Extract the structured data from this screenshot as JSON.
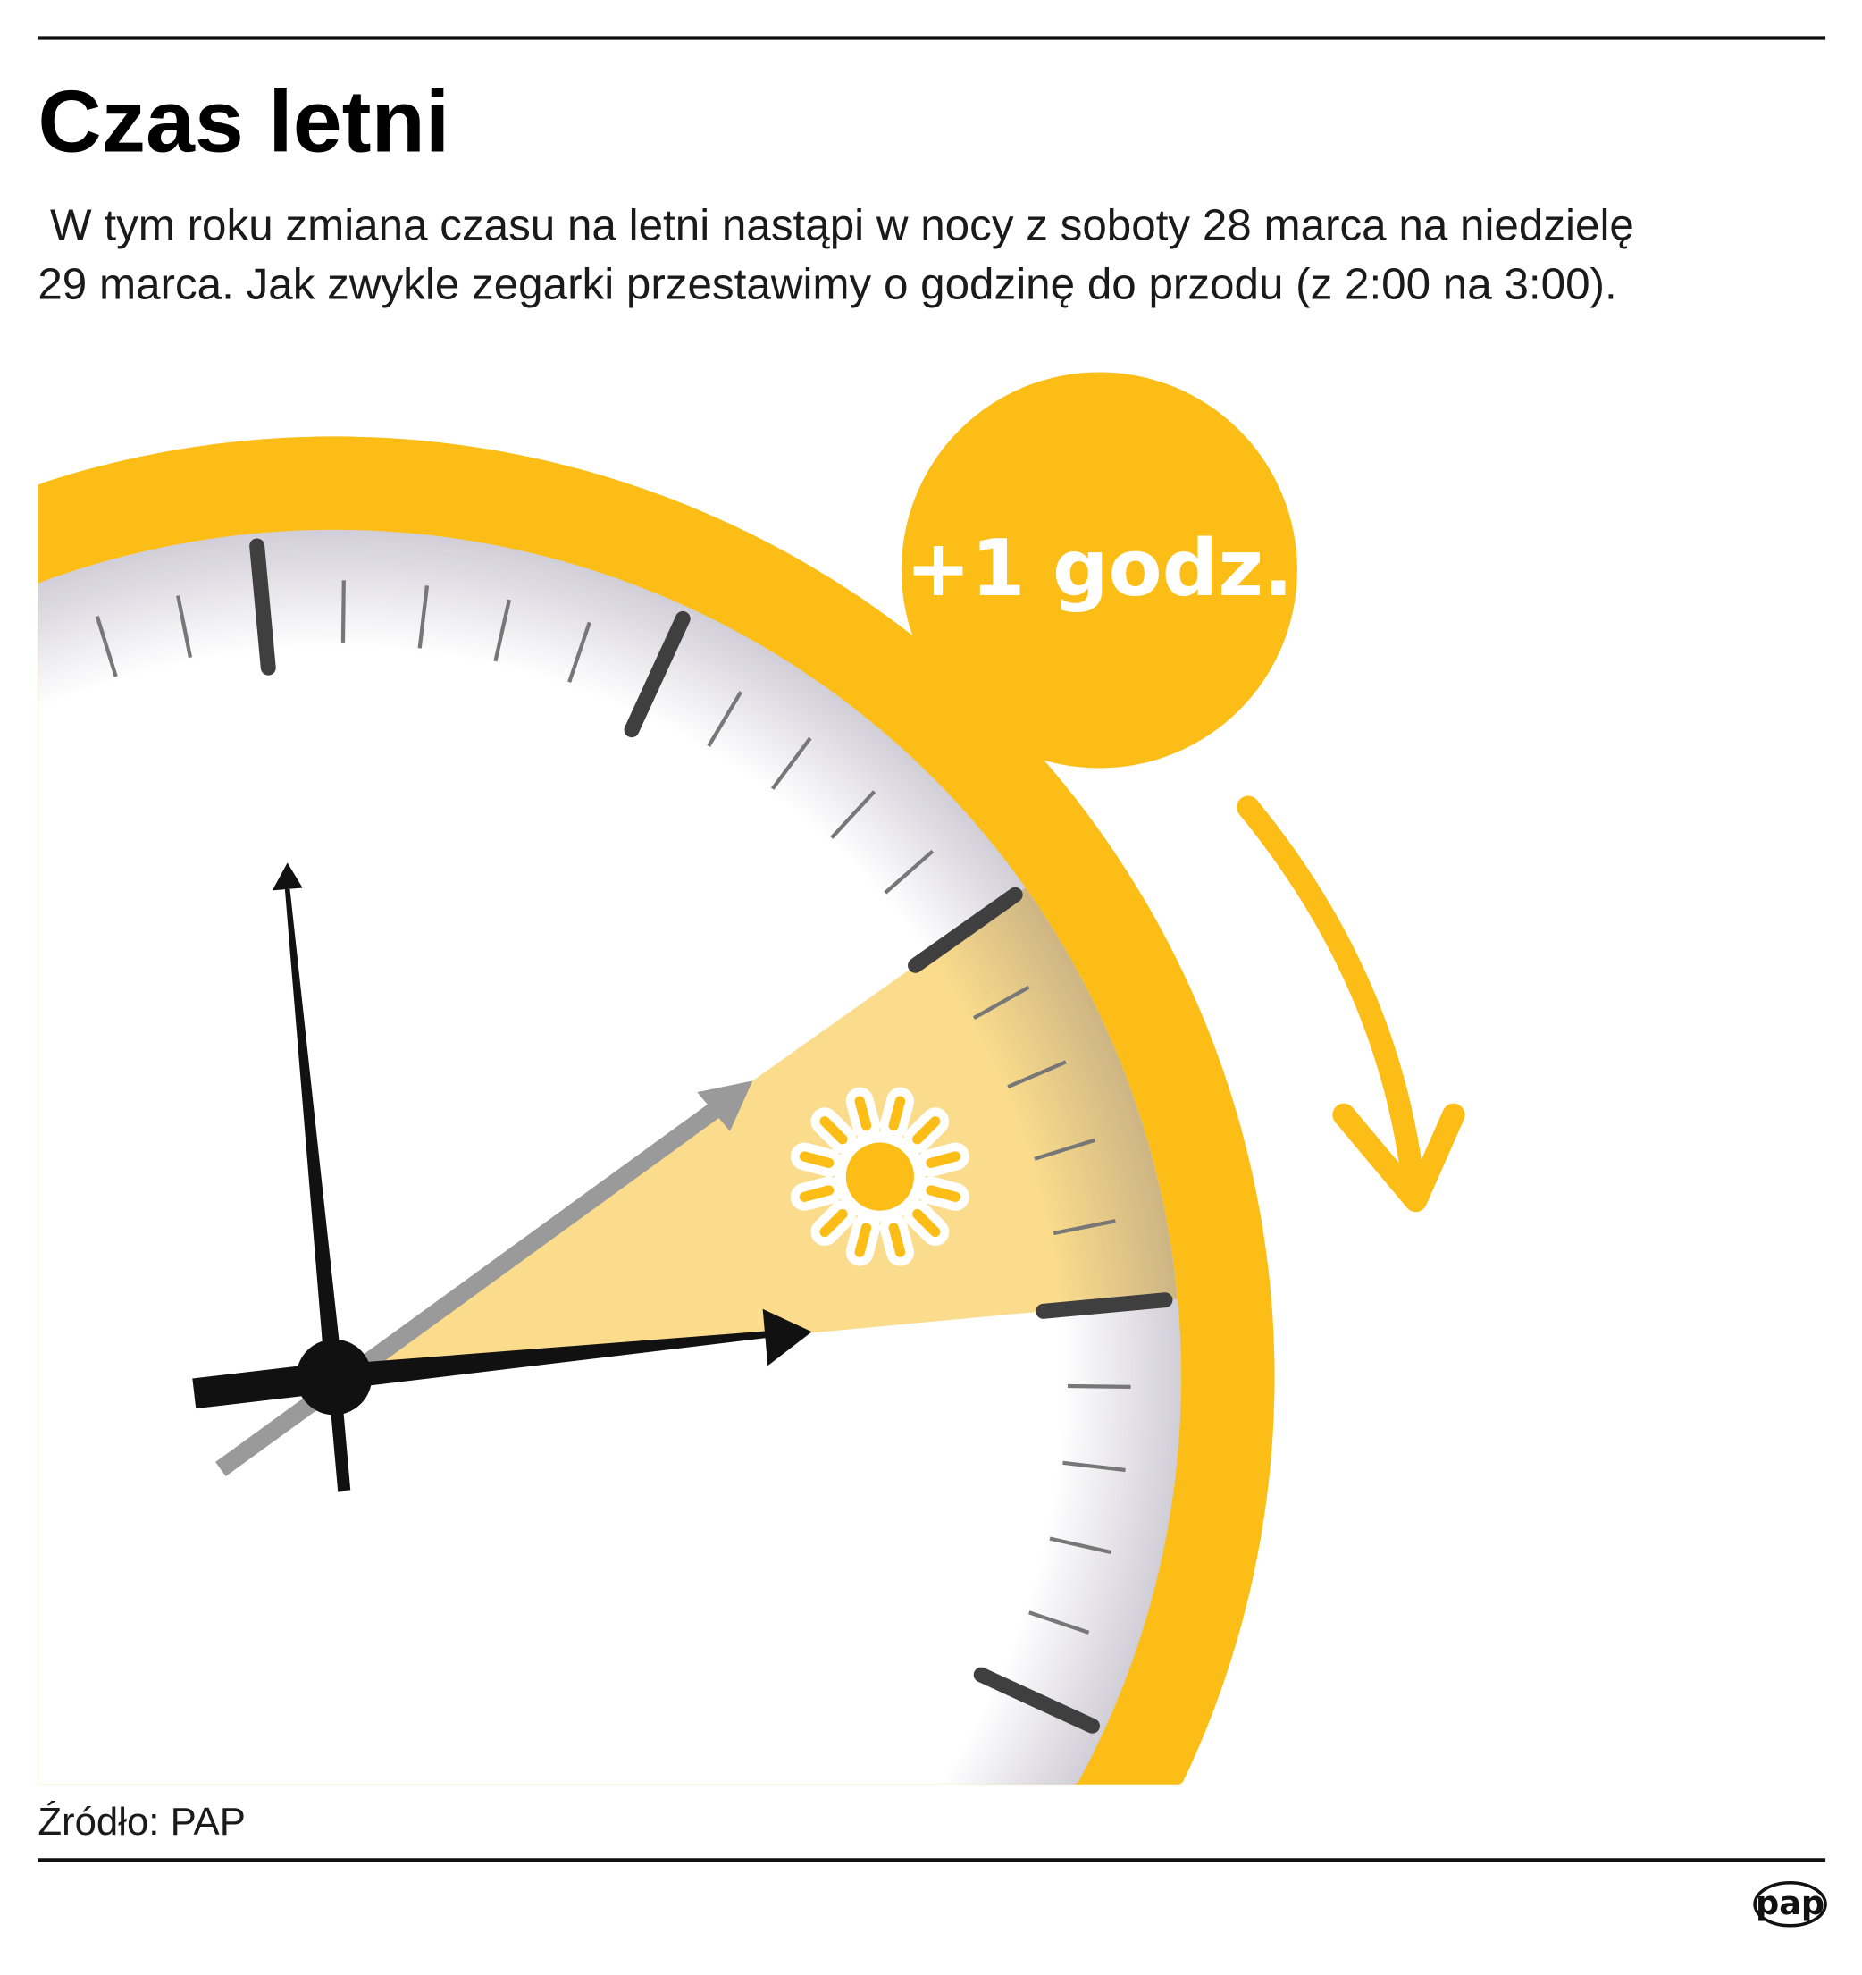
{
  "header": {
    "title": "Czas letni",
    "description_line1": " W tym roku zmiana czasu na letni nastąpi w nocy z soboty 28 marca na niedzielę",
    "description_line2": "29 marca. Jak zwykle zegarki przestawimy o godzinę do przodu (z 2:00 na 3:00)."
  },
  "illustration": {
    "badge_text": "+1 godz.",
    "clock_time_before": "2:00",
    "clock_time_after": "3:00",
    "sun_icon": "sun-icon",
    "arrow_icon": "curved-arrow-down-icon"
  },
  "footer": {
    "source": "Źródło: PAP",
    "logo": "pap"
  },
  "colors": {
    "accent_yellow": "#FBBD16",
    "wedge_yellow": "#FADC8C",
    "hand_black": "#111111",
    "hand_gray": "#9a9a9a"
  }
}
